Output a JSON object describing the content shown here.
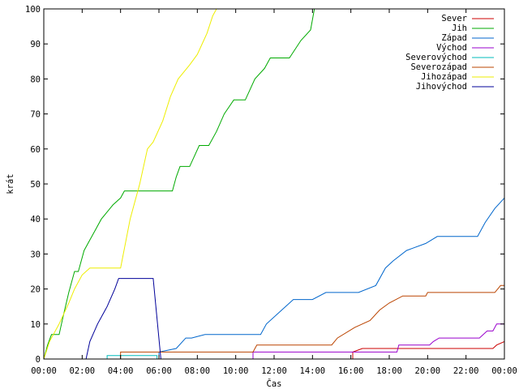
{
  "chart_data": {
    "type": "line",
    "title": "",
    "xlabel": "Čas",
    "ylabel": "krát",
    "x_unit": "hours",
    "xlim": [
      0,
      24
    ],
    "ylim": [
      0,
      100
    ],
    "grid": false,
    "legend_position": "top-right",
    "x_ticks": [
      {
        "x": 0,
        "label": "00:00"
      },
      {
        "x": 2,
        "label": "02:00"
      },
      {
        "x": 4,
        "label": "04:00"
      },
      {
        "x": 6,
        "label": "06:00"
      },
      {
        "x": 8,
        "label": "08:00"
      },
      {
        "x": 10,
        "label": "10:00"
      },
      {
        "x": 12,
        "label": "12:00"
      },
      {
        "x": 14,
        "label": "14:00"
      },
      {
        "x": 16,
        "label": "16:00"
      },
      {
        "x": 18,
        "label": "18:00"
      },
      {
        "x": 20,
        "label": "20:00"
      },
      {
        "x": 22,
        "label": "22:00"
      },
      {
        "x": 24,
        "label": "00:00"
      }
    ],
    "y_ticks": [
      {
        "y": 0,
        "label": "0"
      },
      {
        "y": 10,
        "label": "10"
      },
      {
        "y": 20,
        "label": "20"
      },
      {
        "y": 30,
        "label": "30"
      },
      {
        "y": 40,
        "label": "40"
      },
      {
        "y": 50,
        "label": "50"
      },
      {
        "y": 60,
        "label": "60"
      },
      {
        "y": 70,
        "label": "70"
      },
      {
        "y": 80,
        "label": "80"
      },
      {
        "y": 90,
        "label": "90"
      },
      {
        "y": 100,
        "label": "100"
      }
    ],
    "series": [
      {
        "name": "Sever",
        "color": "#cc0000",
        "points": [
          [
            0,
            0
          ],
          [
            16.1,
            0
          ],
          [
            16.1,
            2
          ],
          [
            16.6,
            3
          ],
          [
            20,
            3
          ],
          [
            23.4,
            3
          ],
          [
            23.6,
            4
          ],
          [
            24,
            5
          ]
        ]
      },
      {
        "name": "Jih",
        "color": "#00aa00",
        "points": [
          [
            0,
            0
          ],
          [
            0.2,
            4
          ],
          [
            0.4,
            7
          ],
          [
            0.8,
            7
          ],
          [
            1.0,
            12
          ],
          [
            1.3,
            19
          ],
          [
            1.6,
            25
          ],
          [
            1.8,
            25
          ],
          [
            2.1,
            31
          ],
          [
            2.4,
            34
          ],
          [
            2.7,
            37
          ],
          [
            3.0,
            40
          ],
          [
            3.3,
            42
          ],
          [
            3.6,
            44
          ],
          [
            4.0,
            46
          ],
          [
            4.2,
            48
          ],
          [
            6.7,
            48
          ],
          [
            6.9,
            52
          ],
          [
            7.1,
            55
          ],
          [
            7.6,
            55
          ],
          [
            8.1,
            61
          ],
          [
            8.6,
            61
          ],
          [
            9.0,
            65
          ],
          [
            9.4,
            70
          ],
          [
            9.9,
            74
          ],
          [
            10.5,
            74
          ],
          [
            11.0,
            80
          ],
          [
            11.5,
            83
          ],
          [
            11.8,
            86
          ],
          [
            12.8,
            86
          ],
          [
            13.4,
            91
          ],
          [
            13.9,
            94
          ],
          [
            14.1,
            100
          ],
          [
            14.4,
            100
          ]
        ]
      },
      {
        "name": "Západ",
        "color": "#0066cc",
        "points": [
          [
            0,
            0
          ],
          [
            6.0,
            0
          ],
          [
            6.0,
            2
          ],
          [
            6.9,
            3
          ],
          [
            7.4,
            6
          ],
          [
            7.7,
            6
          ],
          [
            8.4,
            7
          ],
          [
            10.9,
            7
          ],
          [
            11.3,
            7
          ],
          [
            11.6,
            10
          ],
          [
            12.4,
            14
          ],
          [
            13,
            17
          ],
          [
            14,
            17
          ],
          [
            14.7,
            19
          ],
          [
            16.4,
            19
          ],
          [
            17.3,
            21
          ],
          [
            17.8,
            26
          ],
          [
            18.2,
            28
          ],
          [
            18.9,
            31
          ],
          [
            19.9,
            33
          ],
          [
            20.5,
            35
          ],
          [
            22.6,
            35
          ],
          [
            23.0,
            39
          ],
          [
            23.5,
            43
          ],
          [
            24,
            46
          ]
        ]
      },
      {
        "name": "Východ",
        "color": "#9900cc",
        "points": [
          [
            0,
            0
          ],
          [
            10.9,
            0
          ],
          [
            10.9,
            2
          ],
          [
            18.0,
            2
          ],
          [
            18.4,
            2
          ],
          [
            18.5,
            4
          ],
          [
            20.1,
            4
          ],
          [
            20.3,
            5
          ],
          [
            20.6,
            6
          ],
          [
            22.7,
            6
          ],
          [
            23.1,
            8
          ],
          [
            23.4,
            8
          ],
          [
            23.6,
            10
          ],
          [
            24,
            10
          ]
        ]
      },
      {
        "name": "Severovýchod",
        "color": "#00bbbb",
        "points": [
          [
            0,
            0
          ],
          [
            3.3,
            0
          ],
          [
            3.3,
            1
          ],
          [
            5.9,
            1
          ],
          [
            5.9,
            0
          ],
          [
            24,
            0
          ]
        ]
      },
      {
        "name": "Severozápad",
        "color": "#bb4400",
        "points": [
          [
            0,
            0
          ],
          [
            4.0,
            0
          ],
          [
            4.0,
            2
          ],
          [
            10.9,
            2
          ],
          [
            11.1,
            4
          ],
          [
            15.0,
            4
          ],
          [
            15.3,
            6
          ],
          [
            16.2,
            9
          ],
          [
            17.0,
            11
          ],
          [
            17.5,
            14
          ],
          [
            18.0,
            16
          ],
          [
            18.7,
            18
          ],
          [
            19.9,
            18
          ],
          [
            20.0,
            19
          ],
          [
            23.5,
            19
          ],
          [
            23.8,
            21
          ],
          [
            24,
            21
          ]
        ]
      },
      {
        "name": "Jihozápad",
        "color": "#eeee00",
        "points": [
          [
            0,
            0
          ],
          [
            0.3,
            5
          ],
          [
            0.8,
            10
          ],
          [
            1.3,
            16
          ],
          [
            1.6,
            20
          ],
          [
            2.0,
            24
          ],
          [
            2.4,
            26
          ],
          [
            4.0,
            26
          ],
          [
            4.5,
            40
          ],
          [
            5.0,
            50
          ],
          [
            5.4,
            60
          ],
          [
            5.7,
            62
          ],
          [
            6.2,
            68
          ],
          [
            6.6,
            75
          ],
          [
            7.0,
            80
          ],
          [
            7.6,
            84
          ],
          [
            8.0,
            87
          ],
          [
            8.5,
            93
          ],
          [
            8.8,
            98
          ],
          [
            9.0,
            100
          ],
          [
            9.2,
            100
          ]
        ]
      },
      {
        "name": "Jihovýchod",
        "color": "#000099",
        "points": [
          [
            0,
            0
          ],
          [
            2.2,
            0
          ],
          [
            2.4,
            5
          ],
          [
            2.8,
            10
          ],
          [
            3.3,
            15
          ],
          [
            3.7,
            20
          ],
          [
            3.9,
            23
          ],
          [
            5.7,
            23
          ],
          [
            6.1,
            0
          ],
          [
            24,
            0
          ]
        ]
      }
    ]
  }
}
